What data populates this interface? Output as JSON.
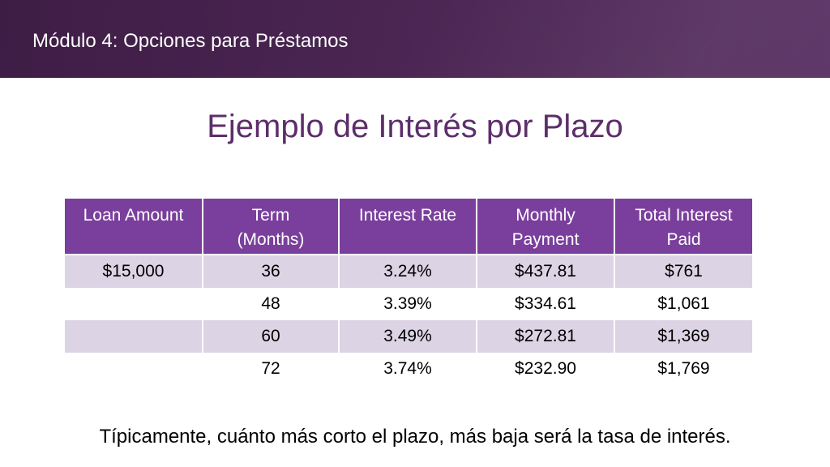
{
  "header": {
    "module_title": "Módulo 4: Opciones para Préstamos",
    "colors": {
      "band": "#4a2552",
      "table_header": "#7a3f9c",
      "row_shade": "#dcd3e4",
      "title": "#5c2e6a"
    }
  },
  "slide": {
    "title": "Ejemplo de Interés por Plazo",
    "footnote": "Típicamente, cuánto más corto el plazo, más baja será la tasa de interés."
  },
  "table": {
    "headers": [
      {
        "line1": "Loan Amount",
        "line2": ""
      },
      {
        "line1": "Term",
        "line2": "(Months)"
      },
      {
        "line1": "Interest Rate",
        "line2": ""
      },
      {
        "line1": "Monthly",
        "line2": "Payment"
      },
      {
        "line1": "Total Interest",
        "line2": "Paid"
      }
    ],
    "rows": [
      [
        "$15,000",
        "36",
        "3.24%",
        "$437.81",
        "$761"
      ],
      [
        "",
        "48",
        "3.39%",
        "$334.61",
        "$1,061"
      ],
      [
        "",
        "60",
        "3.49%",
        "$272.81",
        "$1,369"
      ],
      [
        "",
        "72",
        "3.74%",
        "$232.90",
        "$1,769"
      ]
    ]
  }
}
